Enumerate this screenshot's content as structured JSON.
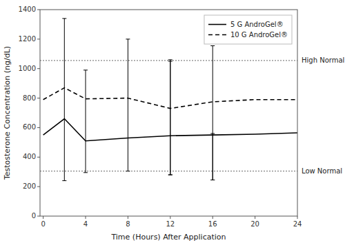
{
  "chart_data": {
    "type": "line",
    "xlabel": "Time (Hours) After Application",
    "ylabel": "Testosterone Concentration (ng/dL)",
    "x": [
      0,
      2,
      4,
      8,
      12,
      16,
      20,
      24
    ],
    "series": [
      {
        "name": "5 G AndroGel®",
        "color": "#000000",
        "line_style": "solid",
        "values": [
          550,
          660,
          510,
          530,
          545,
          550,
          555,
          565
        ],
        "error_upper": [
          null,
          1340,
          990,
          1200,
          1060,
          560,
          null,
          null
        ],
        "error_lower": [
          null,
          240,
          295,
          305,
          280,
          245,
          null,
          null
        ]
      },
      {
        "name": "10 G AndroGel®",
        "color": "#000000",
        "line_style": "dashed",
        "values": [
          790,
          870,
          795,
          800,
          730,
          775,
          790,
          790
        ],
        "error_upper": [
          null,
          null,
          null,
          null,
          1050,
          1155,
          null,
          null
        ],
        "error_lower": [
          null,
          null,
          null,
          null,
          280,
          245,
          null,
          null
        ]
      }
    ],
    "reference_lines": [
      {
        "value": 1055,
        "label": "High Normal"
      },
      {
        "value": 305,
        "label": "Low Normal"
      }
    ],
    "xlim": [
      -0.3,
      24
    ],
    "ylim": [
      0,
      1400
    ],
    "xticks": [
      0,
      4,
      8,
      12,
      16,
      20,
      24
    ],
    "yticks": [
      0,
      200,
      400,
      600,
      800,
      1000,
      1200,
      1400
    ],
    "grid": false,
    "legend": "upper right"
  }
}
